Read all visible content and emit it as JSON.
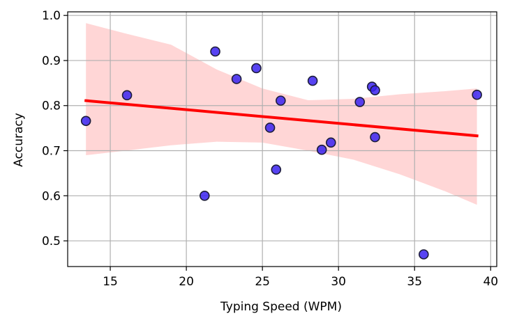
{
  "chart_data": {
    "type": "scatter",
    "title": "",
    "xlabel": "Typing Speed (WPM)",
    "ylabel": "Accuracy",
    "xlim": [
      12.2,
      40.4
    ],
    "ylim": [
      0.443,
      1.008
    ],
    "xticks": [
      15,
      20,
      25,
      30,
      35,
      40
    ],
    "yticks": [
      0.5,
      0.6,
      0.7,
      0.8,
      0.9,
      1.0
    ],
    "xtick_labels": [
      "15",
      "20",
      "25",
      "30",
      "35",
      "40"
    ],
    "ytick_labels": [
      "0.5",
      "0.6",
      "0.7",
      "0.8",
      "0.9",
      "1.0"
    ],
    "grid": true,
    "points": [
      {
        "x": 13.4,
        "y": 0.766
      },
      {
        "x": 16.1,
        "y": 0.823
      },
      {
        "x": 21.2,
        "y": 0.6
      },
      {
        "x": 21.9,
        "y": 0.92
      },
      {
        "x": 23.3,
        "y": 0.859
      },
      {
        "x": 24.6,
        "y": 0.883
      },
      {
        "x": 25.5,
        "y": 0.751
      },
      {
        "x": 25.9,
        "y": 0.658
      },
      {
        "x": 26.2,
        "y": 0.811
      },
      {
        "x": 28.3,
        "y": 0.855
      },
      {
        "x": 28.9,
        "y": 0.702
      },
      {
        "x": 29.5,
        "y": 0.718
      },
      {
        "x": 31.4,
        "y": 0.808
      },
      {
        "x": 32.2,
        "y": 0.842
      },
      {
        "x": 32.4,
        "y": 0.834
      },
      {
        "x": 32.4,
        "y": 0.73
      },
      {
        "x": 35.6,
        "y": 0.47
      },
      {
        "x": 39.1,
        "y": 0.824
      }
    ],
    "regression": {
      "x": [
        13.4,
        39.1
      ],
      "y": [
        0.811,
        0.733
      ]
    },
    "confidence_band": {
      "x": [
        13.4,
        16.0,
        19.0,
        22.0,
        25.0,
        28.0,
        31.0,
        34.0,
        37.0,
        39.1
      ],
      "upper": [
        0.983,
        0.96,
        0.935,
        0.88,
        0.838,
        0.812,
        0.815,
        0.825,
        0.832,
        0.838
      ],
      "lower": [
        0.69,
        0.7,
        0.712,
        0.72,
        0.718,
        0.7,
        0.68,
        0.648,
        0.61,
        0.58
      ]
    },
    "colors": {
      "point_fill": "#3a22f0",
      "point_edge": "#1c1c3a",
      "line": "#ff0000",
      "band": "#ffd6d6",
      "grid": "#b0b0b0",
      "axis": "#000000"
    }
  }
}
